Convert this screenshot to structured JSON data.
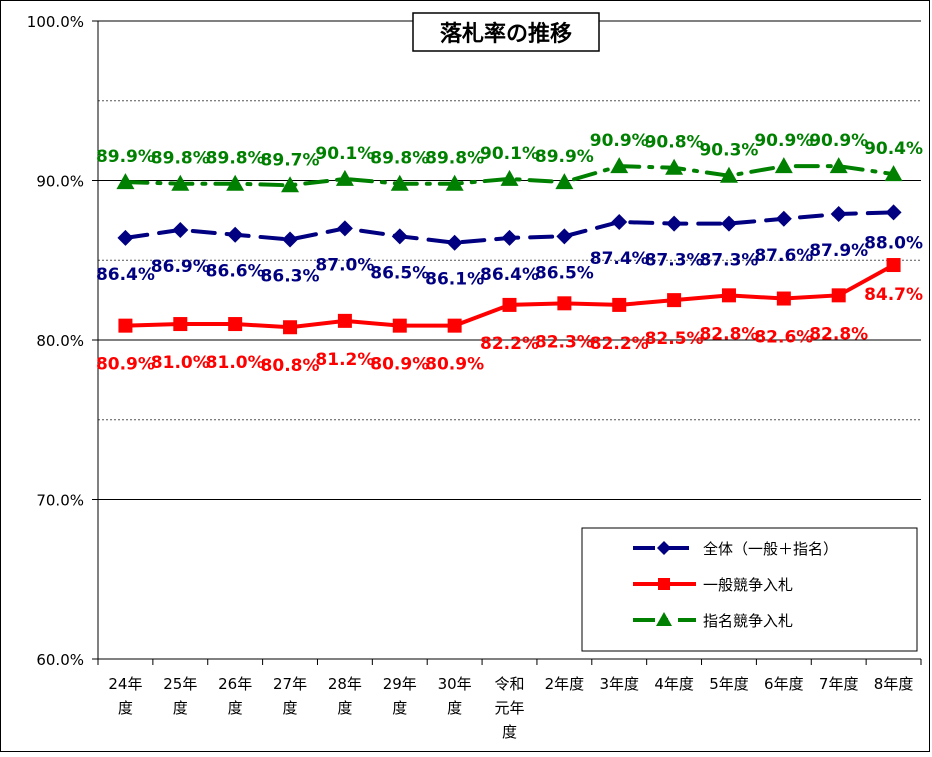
{
  "chart_data": {
    "type": "line",
    "title": "落札率の推移",
    "categories": [
      "24年\n度",
      "25年\n度",
      "26年\n度",
      "27年\n度",
      "28年\n度",
      "29年\n度",
      "30年\n度",
      "令和\n元年\n度",
      "2年度",
      "3年度",
      "4年度",
      "5年度",
      "6年度",
      "7年度",
      "8年度"
    ],
    "ylim": [
      60,
      100
    ],
    "yticks": [
      "60.0%",
      "70.0%",
      "80.0%",
      "90.0%",
      "100.0%"
    ],
    "minor_gridlines": [
      75,
      85,
      95
    ],
    "legend_position": "bottom-right",
    "series": [
      {
        "name": "全体（一般＋指名）",
        "color": "#000080",
        "marker": "diamond",
        "line_style": "dashed",
        "values": [
          86.4,
          86.9,
          86.6,
          86.3,
          87.0,
          86.5,
          86.1,
          86.4,
          86.5,
          87.4,
          87.3,
          87.3,
          87.6,
          87.9,
          88.0
        ],
        "labels": [
          "86.4%",
          "86.9%",
          "86.6%",
          "86.3%",
          "87.0%",
          "86.5%",
          "86.1%",
          "86.4%",
          "86.5%",
          "87.4%",
          "87.3%",
          "87.3%",
          "87.6%",
          "87.9%",
          "88.0%"
        ]
      },
      {
        "name": "一般競争入札",
        "color": "#ff0000",
        "marker": "square",
        "line_style": "solid",
        "values": [
          80.9,
          81.0,
          81.0,
          80.8,
          81.2,
          80.9,
          80.9,
          82.2,
          82.3,
          82.2,
          82.5,
          82.8,
          82.6,
          82.8,
          84.7
        ],
        "labels": [
          "80.9%",
          "81.0%",
          "81.0%",
          "80.8%",
          "81.2%",
          "80.9%",
          "80.9%",
          "82.2%",
          "82.3%",
          "82.2%",
          "82.5%",
          "82.8%",
          "82.6%",
          "82.8%",
          "84.7%"
        ]
      },
      {
        "name": "指名競争入札",
        "color": "#008000",
        "marker": "triangle",
        "line_style": "dashdot",
        "values": [
          89.9,
          89.8,
          89.8,
          89.7,
          90.1,
          89.8,
          89.8,
          90.1,
          89.9,
          90.9,
          90.8,
          90.3,
          90.9,
          90.9,
          90.4
        ],
        "labels": [
          "89.9%",
          "89.8%",
          "89.8%",
          "89.7%",
          "90.1%",
          "89.8%",
          "89.8%",
          "90.1%",
          "89.9%",
          "90.9%",
          "90.8%",
          "90.3%",
          "90.9%",
          "90.9%",
          "90.4%"
        ]
      }
    ]
  }
}
